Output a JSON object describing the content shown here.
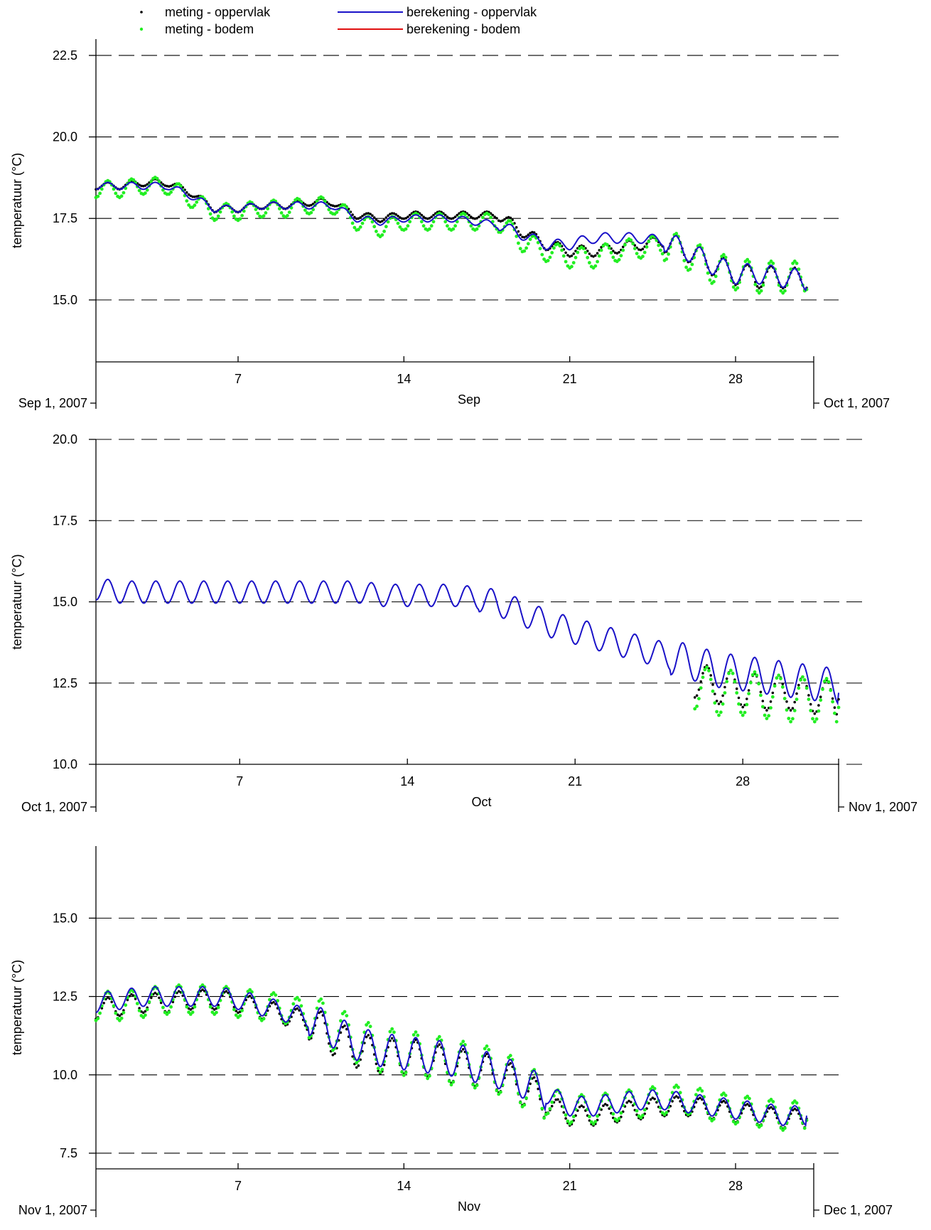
{
  "legend": {
    "items": [
      {
        "label": "meting - oppervlak",
        "kind": "dots",
        "color": "#000000"
      },
      {
        "label": "meting - bodem",
        "kind": "dots",
        "color": "#22ee22"
      },
      {
        "label": "berekening - oppervlak",
        "kind": "line",
        "color": "#1a12c8"
      },
      {
        "label": "berekening - bodem",
        "kind": "line",
        "color": "#e01010"
      }
    ]
  },
  "colors": {
    "meting_oppervlak": "#000000",
    "meting_bodem": "#22ee22",
    "berekening_oppervlak": "#1a12c8",
    "berekening_bodem": "#e01010",
    "grid": "#000000"
  },
  "chart_data": [
    {
      "type": "line",
      "ylabel": "temperatuur (°C)",
      "xlabel": "Sep",
      "date_start_label": "Sep 1, 2007",
      "date_end_label": "Oct 1, 2007",
      "xlim_days": [
        1,
        31.3
      ],
      "ylim": [
        13.1,
        23.0
      ],
      "yticks": [
        15.0,
        17.5,
        20.0,
        22.5
      ],
      "ytick_labels": [
        "15.0",
        "17.5",
        "20.0",
        "22.5"
      ],
      "xticks": [
        7,
        14,
        21,
        28
      ],
      "xtick_labels": [
        "7",
        "14",
        "21",
        "28"
      ],
      "grid": "dashed horizontal at y ticks",
      "series": [
        {
          "name": "meting - oppervlak",
          "x": [
            1,
            2,
            3,
            4,
            5,
            6,
            7,
            8,
            9,
            10,
            11,
            12,
            13,
            14,
            15,
            16,
            17,
            18,
            19,
            20,
            21,
            22,
            23,
            24,
            25,
            26,
            27,
            28,
            29,
            30,
            31
          ],
          "y": [
            18.5,
            18.5,
            18.6,
            18.6,
            18.3,
            17.8,
            17.8,
            17.9,
            17.9,
            18.0,
            18.0,
            17.6,
            17.5,
            17.6,
            17.6,
            17.6,
            17.6,
            17.6,
            17.1,
            16.7,
            16.5,
            16.5,
            16.6,
            16.7,
            16.8,
            16.5,
            16.1,
            15.8,
            15.7,
            15.7,
            15.6
          ]
        },
        {
          "name": "meting - bodem",
          "x": [
            1,
            2,
            3,
            4,
            5,
            6,
            7,
            8,
            9,
            10,
            11,
            12,
            13,
            14,
            15,
            16,
            17,
            18,
            19,
            20,
            21,
            22,
            23,
            24,
            25,
            26,
            27,
            28,
            29,
            30,
            31
          ],
          "y": [
            18.4,
            18.4,
            18.5,
            18.5,
            18.1,
            17.7,
            17.7,
            17.8,
            17.8,
            17.9,
            17.9,
            17.4,
            17.2,
            17.4,
            17.4,
            17.4,
            17.4,
            17.4,
            16.8,
            16.5,
            16.3,
            16.3,
            16.5,
            16.6,
            16.7,
            16.4,
            16.0,
            15.8,
            15.7,
            15.7,
            15.7
          ]
        },
        {
          "name": "berekening - oppervlak",
          "x": [
            1,
            2,
            3,
            4,
            5,
            6,
            7,
            8,
            9,
            10,
            11,
            12,
            13,
            14,
            15,
            16,
            17,
            18,
            19,
            20,
            21,
            22,
            23,
            24,
            25,
            26,
            27,
            28,
            29,
            30,
            31
          ],
          "y": [
            18.5,
            18.5,
            18.5,
            18.5,
            18.2,
            17.8,
            17.8,
            17.9,
            17.9,
            17.9,
            17.9,
            17.5,
            17.4,
            17.5,
            17.5,
            17.5,
            17.4,
            17.3,
            17.0,
            16.7,
            16.7,
            16.9,
            16.9,
            16.9,
            16.8,
            16.5,
            16.1,
            15.8,
            15.8,
            15.7,
            15.6
          ]
        }
      ]
    },
    {
      "type": "line",
      "ylabel": "temperatuur (°C)",
      "xlabel": "Oct",
      "date_start_label": "Oct 1, 2007",
      "date_end_label": "Nov 1, 2007",
      "xlim_days": [
        1,
        32
      ],
      "ylim": [
        10.0,
        20.0
      ],
      "yticks": [
        10.0,
        12.5,
        15.0,
        17.5,
        20.0
      ],
      "ytick_labels": [
        "10.0",
        "12.5",
        "15.0",
        "17.5",
        "20.0"
      ],
      "xticks": [
        7,
        14,
        21,
        28
      ],
      "xtick_labels": [
        "7",
        "14",
        "21",
        "28"
      ],
      "grid": "dashed horizontal at y ticks",
      "series": [
        {
          "name": "berekening - oppervlak",
          "x": [
            1,
            2,
            3,
            4,
            5,
            6,
            7,
            8,
            9,
            10,
            11,
            12,
            13,
            14,
            15,
            16,
            17,
            18,
            19,
            20,
            21,
            22,
            23,
            24,
            25,
            26,
            27,
            28,
            29,
            30,
            31,
            32
          ],
          "y": [
            15.4,
            15.3,
            15.3,
            15.3,
            15.3,
            15.3,
            15.3,
            15.3,
            15.3,
            15.3,
            15.3,
            15.3,
            15.2,
            15.2,
            15.2,
            15.2,
            15.1,
            14.9,
            14.6,
            14.3,
            14.1,
            13.9,
            13.7,
            13.5,
            13.3,
            13.1,
            12.9,
            12.8,
            12.7,
            12.6,
            12.5,
            12.4
          ]
        },
        {
          "name": "meting - oppervlak",
          "x": [
            26,
            27,
            28,
            29,
            30,
            31,
            32
          ],
          "y": [
            12.6,
            12.4,
            12.3,
            12.2,
            12.2,
            12.1,
            12.0
          ]
        },
        {
          "name": "meting - bodem",
          "x": [
            26,
            27,
            28,
            29,
            30,
            31,
            32
          ],
          "y": [
            12.4,
            12.2,
            12.2,
            12.1,
            12.0,
            12.0,
            11.9
          ]
        }
      ]
    },
    {
      "type": "line",
      "ylabel": "temperatuur (°C)",
      "xlabel": "Nov",
      "date_start_label": "Nov 1, 2007",
      "date_end_label": "Dec 1, 2007",
      "xlim_days": [
        1,
        31.3
      ],
      "ylim": [
        7.0,
        17.3
      ],
      "yticks": [
        7.5,
        10.0,
        12.5,
        15.0
      ],
      "ytick_labels": [
        "7.5",
        "10.0",
        "12.5",
        "15.0"
      ],
      "xticks": [
        7,
        14,
        21,
        28
      ],
      "xtick_labels": [
        "7",
        "14",
        "21",
        "28"
      ],
      "grid": "dashed horizontal at y ticks",
      "series": [
        {
          "name": "meting - oppervlak",
          "x": [
            1,
            2,
            3,
            4,
            5,
            6,
            7,
            8,
            9,
            10,
            11,
            12,
            13,
            14,
            15,
            16,
            17,
            18,
            19,
            20,
            21,
            22,
            23,
            24,
            25,
            26,
            27,
            28,
            29,
            30,
            31
          ],
          "y": [
            12.1,
            12.2,
            12.3,
            12.3,
            12.4,
            12.4,
            12.3,
            12.1,
            11.9,
            11.7,
            11.2,
            10.8,
            10.6,
            10.6,
            10.5,
            10.3,
            10.2,
            10.0,
            9.6,
            9.1,
            8.7,
            8.7,
            8.8,
            8.9,
            9.0,
            9.0,
            8.9,
            8.8,
            8.7,
            8.6,
            8.6
          ]
        },
        {
          "name": "meting - bodem",
          "x": [
            1,
            2,
            3,
            4,
            5,
            6,
            7,
            8,
            9,
            10,
            11,
            12,
            13,
            14,
            15,
            16,
            17,
            18,
            19,
            20,
            21,
            22,
            23,
            24,
            25,
            26,
            27,
            28,
            29,
            30,
            31
          ],
          "y": [
            12.2,
            12.2,
            12.3,
            12.4,
            12.4,
            12.4,
            12.3,
            12.2,
            12.1,
            11.9,
            11.5,
            11.1,
            10.8,
            10.7,
            10.6,
            10.4,
            10.3,
            10.1,
            9.7,
            9.2,
            8.9,
            8.9,
            9.0,
            9.1,
            9.2,
            9.2,
            9.0,
            8.9,
            8.8,
            8.7,
            8.7
          ]
        },
        {
          "name": "berekening - oppervlak",
          "x": [
            1,
            2,
            3,
            4,
            5,
            6,
            7,
            8,
            9,
            10,
            11,
            12,
            13,
            14,
            15,
            16,
            17,
            18,
            19,
            20,
            21,
            22,
            23,
            24,
            25,
            26,
            27,
            28,
            29,
            30,
            31
          ],
          "y": [
            12.3,
            12.4,
            12.5,
            12.5,
            12.5,
            12.5,
            12.4,
            12.2,
            12.0,
            11.8,
            11.4,
            11.0,
            10.8,
            10.7,
            10.6,
            10.5,
            10.3,
            10.1,
            9.8,
            9.4,
            9.0,
            9.0,
            9.1,
            9.2,
            9.2,
            9.1,
            9.0,
            8.9,
            8.8,
            8.7,
            8.7
          ]
        }
      ]
    }
  ]
}
